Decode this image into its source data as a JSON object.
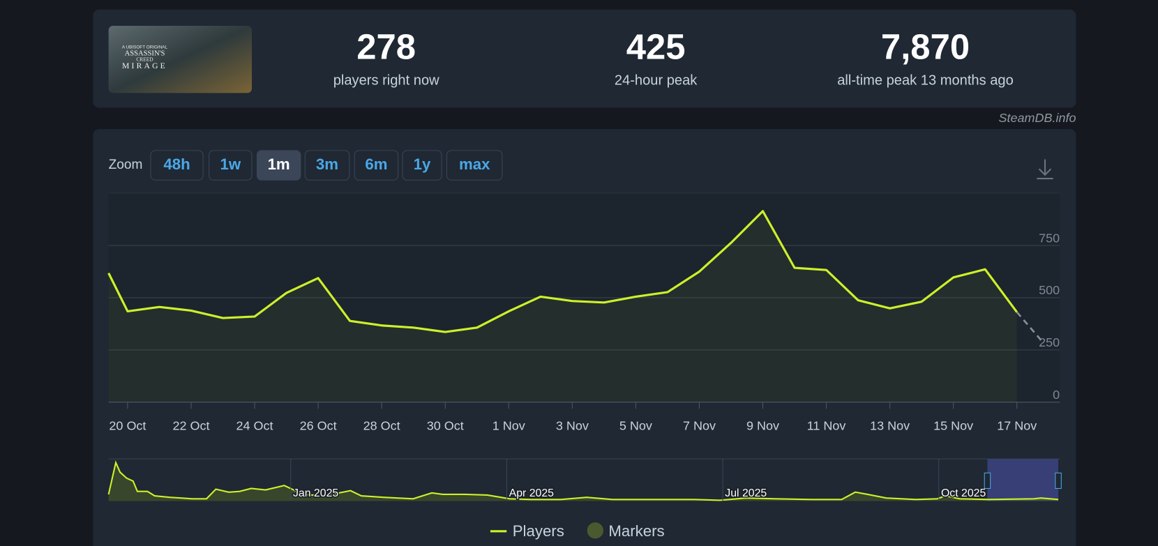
{
  "header": {
    "image_text": [
      "A UBISOFT ORIGINAL",
      "ASSASSIN'S",
      "CREED",
      "MIRAGE"
    ],
    "stats": [
      {
        "value": "278",
        "label": "players right now"
      },
      {
        "value": "425",
        "label": "24-hour peak"
      },
      {
        "value": "7,870",
        "label": "all-time peak 13 months ago"
      }
    ],
    "source": "SteamDB.info"
  },
  "zoom": {
    "label": "Zoom",
    "options": [
      "48h",
      "1w",
      "1m",
      "3m",
      "6m",
      "1y",
      "max"
    ],
    "active_index": 2
  },
  "chart_data": [
    {
      "type": "line",
      "xlim": [
        19.4,
        49.35
      ],
      "ylim": [
        0,
        1000
      ],
      "yticks": [
        0,
        250,
        500,
        750
      ],
      "grid": true,
      "xticks": [
        {
          "value": 20,
          "label": "20 Oct"
        },
        {
          "value": 22,
          "label": "22 Oct"
        },
        {
          "value": 24,
          "label": "24 Oct"
        },
        {
          "value": 26,
          "label": "26 Oct"
        },
        {
          "value": 28,
          "label": "28 Oct"
        },
        {
          "value": 30,
          "label": "30 Oct"
        },
        {
          "value": 32,
          "label": "1 Nov"
        },
        {
          "value": 34,
          "label": "3 Nov"
        },
        {
          "value": 36,
          "label": "5 Nov"
        },
        {
          "value": 38,
          "label": "7 Nov"
        },
        {
          "value": 40,
          "label": "9 Nov"
        },
        {
          "value": 42,
          "label": "11 Nov"
        },
        {
          "value": 44,
          "label": "13 Nov"
        },
        {
          "value": 46,
          "label": "15 Nov"
        },
        {
          "value": 48,
          "label": "17 Nov"
        }
      ],
      "series": [
        {
          "name": "Players",
          "color": "#cdf02a",
          "x": [
            19.4,
            20,
            21,
            22,
            23,
            24,
            25,
            26,
            27,
            28,
            29,
            30,
            31,
            32,
            33,
            34,
            35,
            36,
            37,
            38,
            39,
            40,
            41,
            42,
            43,
            44,
            45,
            46,
            47,
            48
          ],
          "values": [
            618,
            435,
            456,
            438,
            403,
            410,
            523,
            594,
            389,
            367,
            357,
            336,
            357,
            435,
            505,
            484,
            477,
            505,
            527,
            625,
            763,
            915,
            643,
            633,
            488,
            449,
            481,
            597,
            636,
            431
          ]
        },
        {
          "name": "Markers",
          "color": "#4b5a2e",
          "values": []
        }
      ],
      "projection": {
        "x": 48.8,
        "value": 290,
        "color": "#8a8f96"
      }
    },
    {
      "type": "area",
      "color": "#cdf02a",
      "xlim": [
        -2.53,
        10.68
      ],
      "ylim": [
        0,
        8600
      ],
      "xticks": [
        {
          "value": 0,
          "label": "Jan 2025"
        },
        {
          "value": 3,
          "label": "Apr 2025"
        },
        {
          "value": 6,
          "label": "Jul 2025"
        },
        {
          "value": 9,
          "label": "Oct 2025"
        }
      ],
      "x": [
        -2.53,
        -2.43,
        -2.37,
        -2.28,
        -2.19,
        -2.13,
        -1.99,
        -1.89,
        -1.68,
        -1.37,
        -1.17,
        -1.04,
        -0.86,
        -0.71,
        -0.55,
        -0.35,
        -0.09,
        0.04,
        0.16,
        0.47,
        0.83,
        0.98,
        1.29,
        1.7,
        1.96,
        2.11,
        2.42,
        2.73,
        3.04,
        3.34,
        3.75,
        4.11,
        4.47,
        4.98,
        5.6,
        5.96,
        6.32,
        6.73,
        7.24,
        7.65,
        7.84,
        8.01,
        8.27,
        8.68,
        8.98,
        9.09,
        9.29,
        9.7,
        10.32,
        10.42,
        10.66
      ],
      "values": [
        1360,
        7850,
        5890,
        4680,
        4070,
        1960,
        1960,
        1060,
        750,
        450,
        450,
        2410,
        1810,
        1960,
        2570,
        2260,
        3170,
        2260,
        1360,
        1060,
        2110,
        1060,
        750,
        450,
        1660,
        1360,
        1360,
        1210,
        450,
        300,
        300,
        750,
        300,
        300,
        300,
        150,
        600,
        450,
        300,
        300,
        1810,
        1360,
        600,
        300,
        450,
        1060,
        450,
        300,
        450,
        600,
        300
      ]
    }
  ]
}
